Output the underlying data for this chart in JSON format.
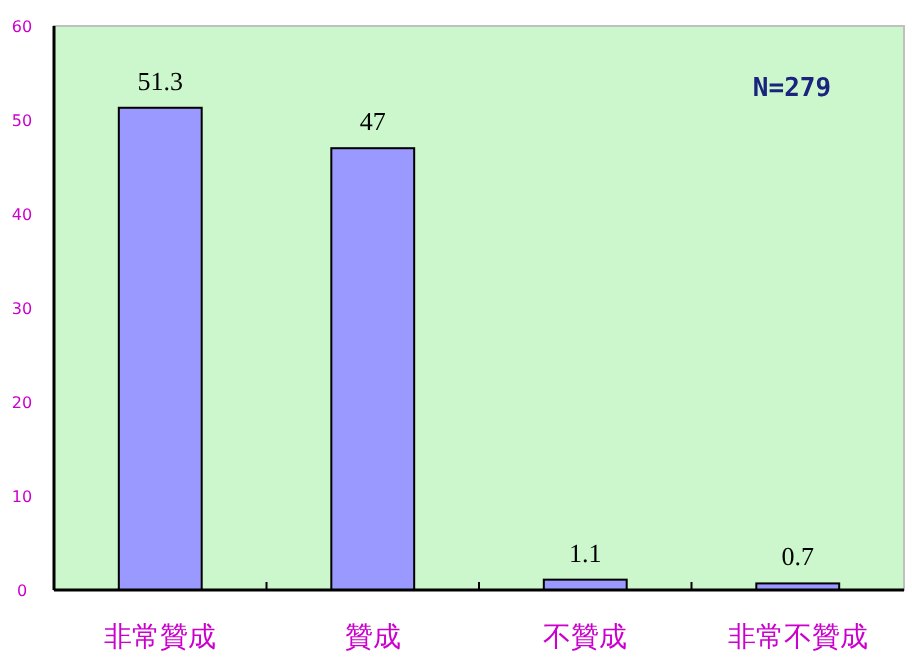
{
  "chart_data": {
    "type": "bar",
    "categories": [
      "非常贊成",
      "贊成",
      "不贊成",
      "非常不贊成"
    ],
    "values": [
      51.3,
      47,
      1.1,
      0.7
    ],
    "color": "#9999ff",
    "ylim": [
      0,
      60
    ],
    "yticks": [
      0,
      10,
      20,
      30,
      40,
      50,
      60
    ],
    "data_labels": true,
    "grid": false,
    "annotations": [
      "N=279"
    ]
  }
}
